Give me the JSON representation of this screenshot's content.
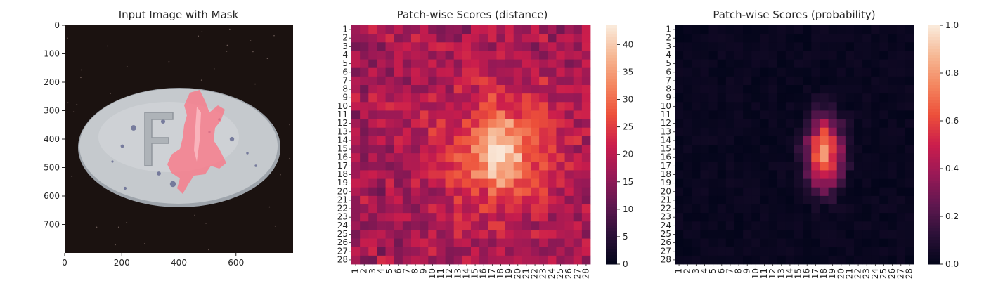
{
  "chart_data": [
    {
      "type": "image",
      "title": "Input Image with Mask",
      "xlim": [
        0,
        800
      ],
      "ylim": [
        800,
        0
      ],
      "xticks": [
        "0",
        "200",
        "400",
        "600"
      ],
      "yticks": [
        "0",
        "100",
        "200",
        "300",
        "400",
        "500",
        "600",
        "700"
      ],
      "colors": {
        "background": "#1b1210",
        "pill": "#c5c9cd",
        "pill_shadow": "#9ea4ab",
        "speckle": "#5a5f8a",
        "mask": "#ff6f7f"
      }
    },
    {
      "type": "heatmap",
      "title": "Patch-wise Scores (distance)",
      "rows": 28,
      "cols": 28,
      "colormap": "rocket",
      "vmin": 0,
      "vmax": 43.5,
      "colorbar_ticks": [
        "0",
        "5",
        "10",
        "15",
        "20",
        "25",
        "30",
        "35",
        "40"
      ],
      "peak_value": 43,
      "peak_center": {
        "row": 15.5,
        "col": 18
      }
    },
    {
      "type": "heatmap",
      "title": "Patch-wise Scores (probability)",
      "rows": 28,
      "cols": 28,
      "colormap": "rocket",
      "vmin": 0,
      "vmax": 1,
      "colorbar_ticks": [
        "0.0",
        "0.2",
        "0.4",
        "0.6",
        "0.8",
        "1.0"
      ],
      "peak_value": 0.8,
      "peak_center": {
        "row": 15.5,
        "col": 18
      }
    }
  ]
}
